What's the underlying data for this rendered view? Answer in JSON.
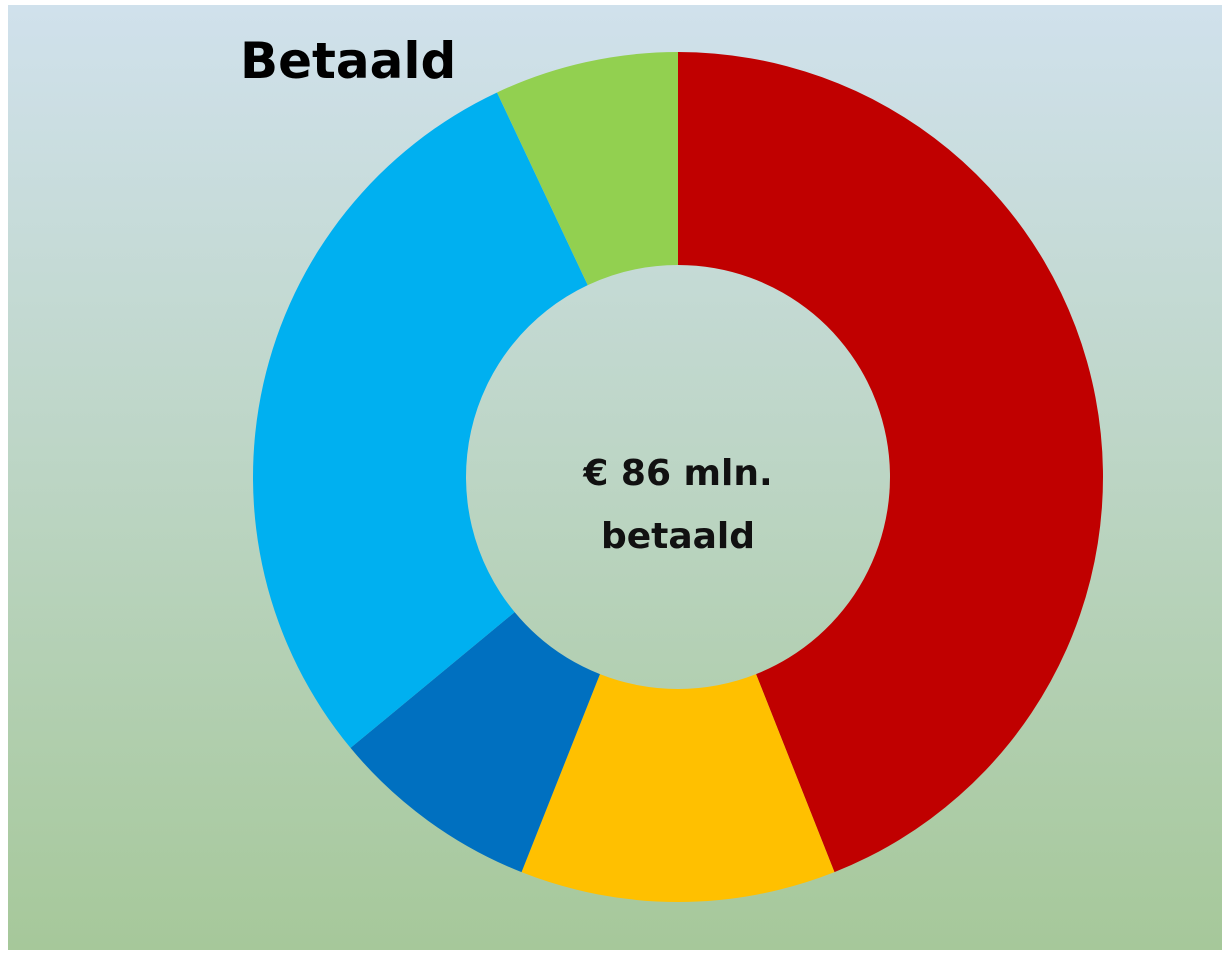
{
  "chart_data": {
    "type": "donut",
    "title": "Betaald",
    "center_text": [
      "€ 86 mln.",
      "betaald"
    ],
    "categories": [
      null,
      null,
      null,
      null,
      null
    ],
    "values": [
      44,
      12,
      8,
      29,
      7
    ],
    "colors": [
      "#c00000",
      "#ffc000",
      "#0070c0",
      "#00b0f0",
      "#92d050"
    ]
  }
}
